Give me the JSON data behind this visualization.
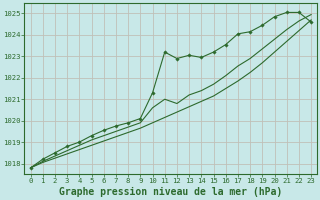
{
  "title": "Graphe pression niveau de la mer (hPa)",
  "bg_color": "#c8e8e8",
  "grid_color": "#b0d0d0",
  "line_color": "#2d6a2d",
  "marker_color": "#2d6a2d",
  "xlim": [
    -0.5,
    23.5
  ],
  "ylim": [
    1017.5,
    1025.5
  ],
  "yticks": [
    1018,
    1019,
    1020,
    1021,
    1022,
    1023,
    1024,
    1025
  ],
  "xticks": [
    0,
    1,
    2,
    3,
    4,
    5,
    6,
    7,
    8,
    9,
    10,
    11,
    12,
    13,
    14,
    15,
    16,
    17,
    18,
    19,
    20,
    21,
    22,
    23
  ],
  "series_marker_x": [
    0,
    1,
    2,
    3,
    4,
    5,
    6,
    7,
    8,
    9,
    10,
    11,
    12,
    13,
    14,
    15,
    16,
    17,
    18,
    19,
    20,
    21,
    22,
    23
  ],
  "series_marker_y": [
    1017.8,
    1018.2,
    1018.5,
    1018.8,
    1019.0,
    1019.3,
    1019.55,
    1019.75,
    1019.9,
    1020.1,
    1021.3,
    1023.2,
    1022.9,
    1023.05,
    1022.95,
    1023.2,
    1023.55,
    1024.05,
    1024.15,
    1024.45,
    1024.85,
    1025.05,
    1025.05,
    1024.6
  ],
  "series_smooth_x": [
    0,
    1,
    2,
    3,
    4,
    5,
    6,
    7,
    8,
    9,
    10,
    11,
    12,
    13,
    14,
    15,
    16,
    17,
    18,
    19,
    20,
    21,
    22,
    23
  ],
  "series_smooth_y": [
    1017.8,
    1018.05,
    1018.25,
    1018.45,
    1018.65,
    1018.85,
    1019.05,
    1019.25,
    1019.45,
    1019.65,
    1019.9,
    1020.15,
    1020.4,
    1020.65,
    1020.9,
    1021.15,
    1021.5,
    1021.85,
    1022.25,
    1022.7,
    1023.2,
    1023.7,
    1024.2,
    1024.7
  ],
  "series_mid_x": [
    0,
    1,
    2,
    3,
    4,
    5,
    6,
    7,
    8,
    9,
    10,
    11,
    12,
    13,
    14,
    15,
    16,
    17,
    18,
    19,
    20,
    21,
    22,
    23
  ],
  "series_mid_y": [
    1017.8,
    1018.1,
    1018.35,
    1018.6,
    1018.85,
    1019.1,
    1019.3,
    1019.5,
    1019.7,
    1019.9,
    1020.6,
    1021.0,
    1020.8,
    1021.2,
    1021.4,
    1021.7,
    1022.1,
    1022.55,
    1022.9,
    1023.35,
    1023.8,
    1024.25,
    1024.65,
    1024.95
  ],
  "title_fontsize": 7.0,
  "tick_fontsize": 5.2
}
